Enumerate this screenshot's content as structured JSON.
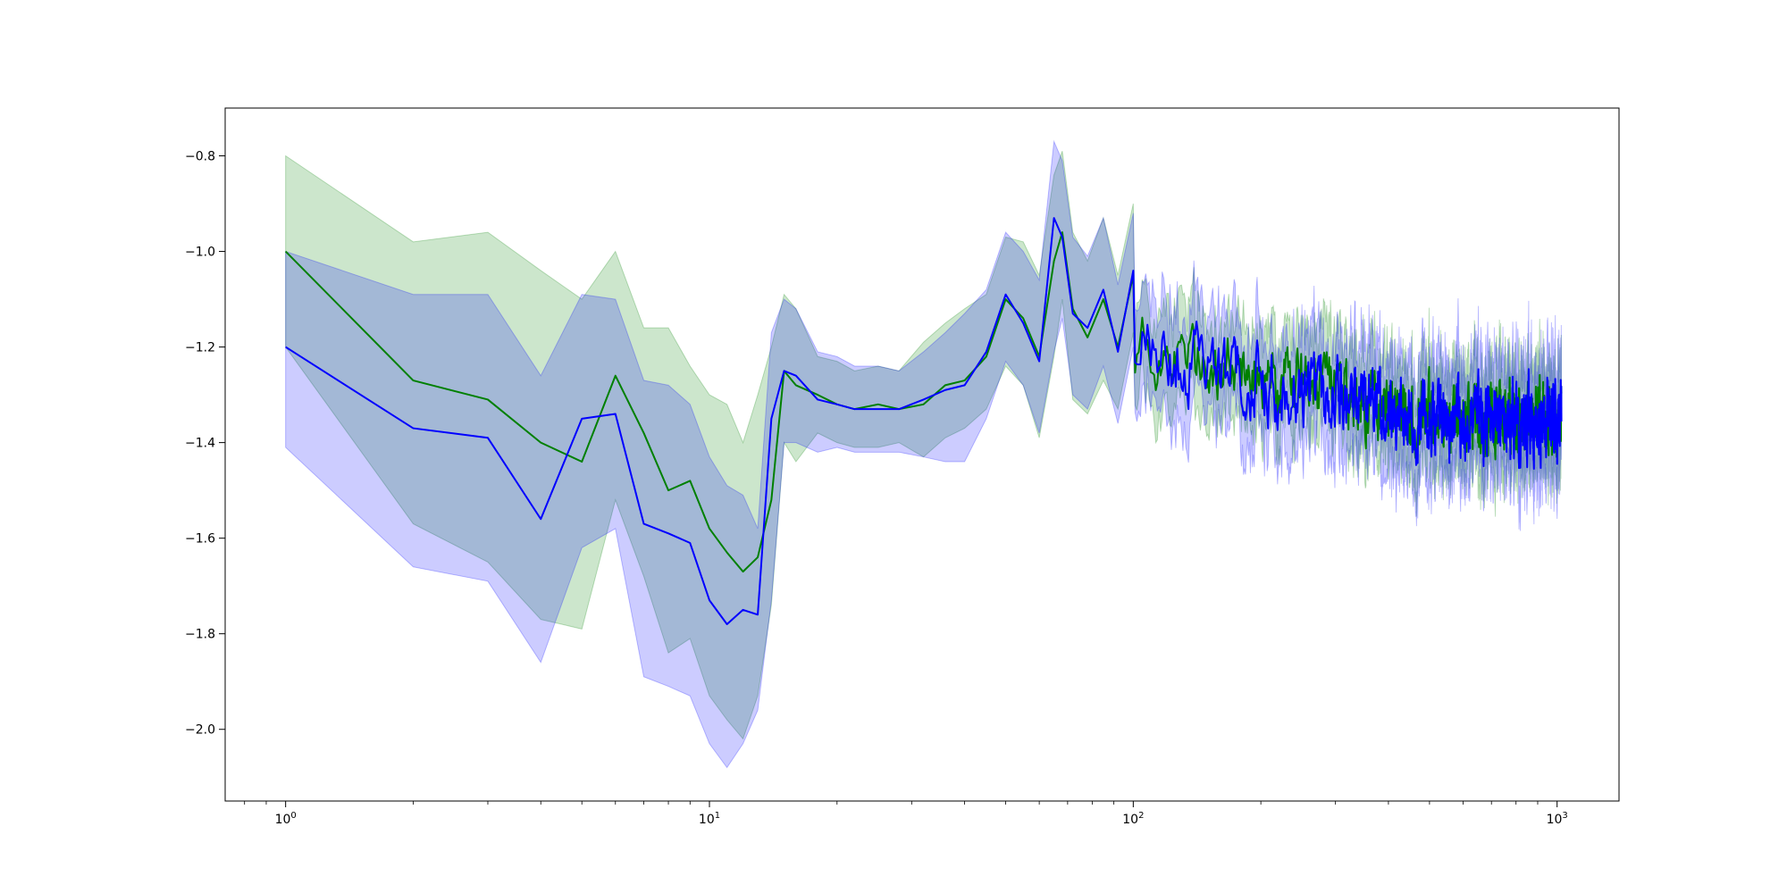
{
  "chart_data": {
    "type": "line",
    "title": "",
    "xlabel": "",
    "ylabel": "",
    "xscale": "log",
    "xlim": [
      0.72,
      1400
    ],
    "ylim": [
      -2.15,
      -0.7
    ],
    "grid": false,
    "legend": "none",
    "x_ticks": [
      {
        "value": 1,
        "base": "10",
        "exp": "0"
      },
      {
        "value": 10,
        "base": "10",
        "exp": "1"
      },
      {
        "value": 100,
        "base": "10",
        "exp": "2"
      },
      {
        "value": 1000,
        "base": "10",
        "exp": "3"
      }
    ],
    "y_ticks": [
      {
        "value": -0.8,
        "label": "−0.8"
      },
      {
        "value": -1.0,
        "label": "−1.0"
      },
      {
        "value": -1.2,
        "label": "−1.2"
      },
      {
        "value": -1.4,
        "label": "−1.4"
      },
      {
        "value": -1.6,
        "label": "−1.6"
      },
      {
        "value": -1.8,
        "label": "−1.8"
      },
      {
        "value": -2.0,
        "label": "−2.0"
      }
    ],
    "series": [
      {
        "color": "#008000",
        "band_alpha": 0.2,
        "x": [
          1,
          2,
          3,
          4,
          5,
          6,
          7,
          8,
          9,
          10,
          11,
          12,
          13,
          14,
          15,
          16,
          18,
          20,
          22,
          25,
          28,
          32,
          36,
          40,
          45,
          50,
          55,
          60,
          65,
          68,
          72,
          78,
          85,
          92,
          100
        ],
        "y": [
          -1.0,
          -1.27,
          -1.31,
          -1.4,
          -1.44,
          -1.26,
          -1.38,
          -1.5,
          -1.48,
          -1.58,
          -1.63,
          -1.67,
          -1.64,
          -1.52,
          -1.25,
          -1.28,
          -1.3,
          -1.32,
          -1.33,
          -1.32,
          -1.33,
          -1.32,
          -1.28,
          -1.27,
          -1.22,
          -1.1,
          -1.14,
          -1.22,
          -1.02,
          -0.96,
          -1.12,
          -1.18,
          -1.1,
          -1.2,
          -1.05
        ],
        "lower": [
          -1.2,
          -1.57,
          -1.65,
          -1.77,
          -1.79,
          -1.52,
          -1.68,
          -1.84,
          -1.81,
          -1.93,
          -1.98,
          -2.02,
          -1.93,
          -1.74,
          -1.4,
          -1.44,
          -1.38,
          -1.4,
          -1.41,
          -1.41,
          -1.4,
          -1.43,
          -1.39,
          -1.37,
          -1.33,
          -1.24,
          -1.28,
          -1.39,
          -1.22,
          -1.1,
          -1.31,
          -1.34,
          -1.27,
          -1.33,
          -1.17
        ],
        "upper": [
          -0.8,
          -0.98,
          -0.96,
          -1.04,
          -1.1,
          -1.0,
          -1.16,
          -1.16,
          -1.24,
          -1.3,
          -1.32,
          -1.4,
          -1.3,
          -1.2,
          -1.09,
          -1.12,
          -1.22,
          -1.23,
          -1.25,
          -1.24,
          -1.25,
          -1.19,
          -1.15,
          -1.12,
          -1.09,
          -0.97,
          -0.98,
          -1.05,
          -0.84,
          -0.79,
          -0.96,
          -1.02,
          -0.93,
          -1.05,
          -0.9
        ],
        "tail": {
          "x_start": 100,
          "x_end": 1024,
          "level_start": -1.2,
          "level_end": -1.35,
          "noise": 0.055,
          "band_half_width": 0.09
        }
      },
      {
        "color": "#0000ff",
        "band_alpha": 0.2,
        "x": [
          1,
          2,
          3,
          4,
          5,
          6,
          7,
          8,
          9,
          10,
          11,
          12,
          13,
          14,
          15,
          16,
          18,
          20,
          22,
          25,
          28,
          32,
          36,
          40,
          45,
          50,
          55,
          60,
          65,
          68,
          72,
          78,
          85,
          92,
          100
        ],
        "y": [
          -1.2,
          -1.37,
          -1.39,
          -1.56,
          -1.35,
          -1.34,
          -1.57,
          -1.59,
          -1.61,
          -1.73,
          -1.78,
          -1.75,
          -1.76,
          -1.35,
          -1.25,
          -1.26,
          -1.31,
          -1.32,
          -1.33,
          -1.33,
          -1.33,
          -1.31,
          -1.29,
          -1.28,
          -1.21,
          -1.09,
          -1.15,
          -1.23,
          -0.93,
          -0.97,
          -1.13,
          -1.16,
          -1.08,
          -1.21,
          -1.04
        ],
        "lower": [
          -1.41,
          -1.66,
          -1.69,
          -1.86,
          -1.62,
          -1.58,
          -1.89,
          -1.91,
          -1.93,
          -2.03,
          -2.08,
          -2.03,
          -1.96,
          -1.73,
          -1.4,
          -1.4,
          -1.42,
          -1.41,
          -1.42,
          -1.42,
          -1.42,
          -1.43,
          -1.44,
          -1.44,
          -1.35,
          -1.23,
          -1.28,
          -1.38,
          -1.21,
          -1.14,
          -1.3,
          -1.33,
          -1.24,
          -1.36,
          -1.2
        ],
        "upper": [
          -1.0,
          -1.09,
          -1.09,
          -1.26,
          -1.09,
          -1.1,
          -1.27,
          -1.28,
          -1.32,
          -1.43,
          -1.49,
          -1.51,
          -1.58,
          -1.17,
          -1.1,
          -1.12,
          -1.21,
          -1.22,
          -1.24,
          -1.24,
          -1.25,
          -1.21,
          -1.17,
          -1.13,
          -1.08,
          -0.96,
          -1.0,
          -1.06,
          -0.77,
          -0.81,
          -0.97,
          -1.01,
          -0.93,
          -1.07,
          -0.92
        ],
        "tail": {
          "x_start": 100,
          "x_end": 1024,
          "level_start": -1.21,
          "level_end": -1.36,
          "noise": 0.06,
          "band_half_width": 0.1
        }
      }
    ]
  }
}
